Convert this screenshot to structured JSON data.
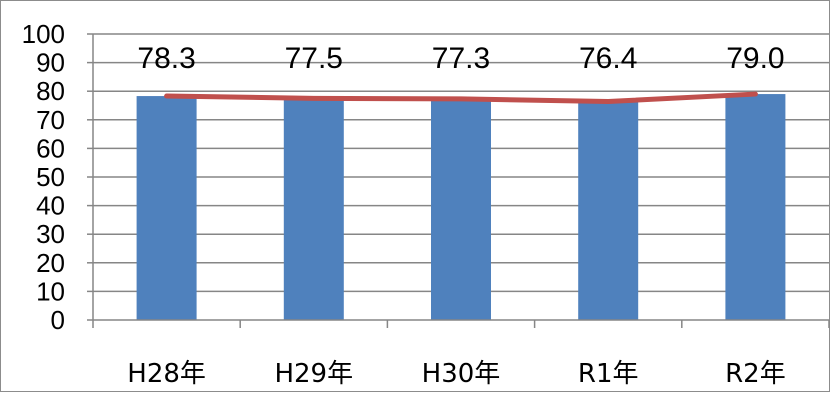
{
  "chart_data": {
    "type": "bar",
    "categories": [
      "H28年",
      "H29年",
      "H30年",
      "R1年",
      "R2年"
    ],
    "series": [
      {
        "type": "bar",
        "values": [
          78.3,
          77.5,
          77.3,
          76.4,
          79.0
        ],
        "color": "#4f81bd"
      },
      {
        "type": "line",
        "values": [
          78.3,
          77.5,
          77.3,
          76.4,
          79.0
        ],
        "color": "#c0504d"
      }
    ],
    "data_labels": [
      "78.3",
      "77.5",
      "77.3",
      "76.4",
      "79.0"
    ],
    "ylim": [
      0,
      100
    ],
    "yticks": [
      0,
      10,
      20,
      30,
      40,
      50,
      60,
      70,
      80,
      90,
      100
    ],
    "grid": true,
    "legend": "none"
  }
}
